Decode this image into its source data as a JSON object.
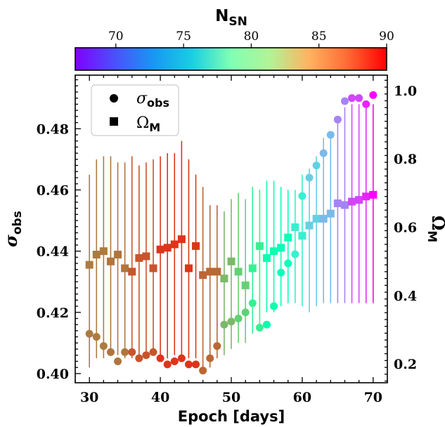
{
  "chart_data": {
    "type": "scatter",
    "xlabel": "Epoch [days]",
    "ylabel_left": {
      "base": "σ",
      "sub": "obs"
    },
    "ylabel_right": {
      "base": "Ω",
      "sub": "M"
    },
    "colorbar_label": {
      "base": "N",
      "sub": "SN"
    },
    "xlim": [
      28,
      72
    ],
    "ylim_left": [
      0.397,
      0.4975
    ],
    "ylim_right": [
      0.145,
      1.045
    ],
    "xticks": [
      "30",
      "40",
      "50",
      "60",
      "70"
    ],
    "yticks_left": [
      "0.40",
      "0.42",
      "0.44",
      "0.46",
      "0.48"
    ],
    "yticks_right": [
      "0.2",
      "0.4",
      "0.6",
      "0.8",
      "1.0"
    ],
    "colorbar_range": [
      67,
      90
    ],
    "colorbar_ticks": [
      "70",
      "75",
      "80",
      "85",
      "90"
    ],
    "colormap": "rainbow",
    "legend_position": "upper-left",
    "legend": [
      {
        "marker": "circle",
        "base": "σ",
        "sub": "obs"
      },
      {
        "marker": "square",
        "base": "Ω",
        "sub": "M"
      }
    ],
    "x": [
      30,
      31,
      32,
      33,
      34,
      35,
      36,
      37,
      38,
      39,
      40,
      41,
      42,
      43,
      44,
      45,
      46,
      47,
      48,
      49,
      50,
      51,
      52,
      53,
      54,
      55,
      56,
      57,
      58,
      59,
      60,
      61,
      62,
      63,
      64,
      65,
      66,
      67,
      68,
      69,
      70
    ],
    "n_sn": [
      86.3,
      86.3,
      86.3,
      86.5,
      86.5,
      86.5,
      87.5,
      87.5,
      87.5,
      87.5,
      88.5,
      88.5,
      88.5,
      88.5,
      88.5,
      88.5,
      87.0,
      87.0,
      87.0,
      84.0,
      84.0,
      83.0,
      83.0,
      81.0,
      81.0,
      79.0,
      79.0,
      78.0,
      78.0,
      76.0,
      76.0,
      74.0,
      74.0,
      73.0,
      73.0,
      71.0,
      71.0,
      69.0,
      69.0,
      68.0,
      67.0
    ],
    "series": [
      {
        "name": "σobs",
        "axis": "left",
        "marker": "circle",
        "values": [
          0.413,
          0.412,
          0.409,
          0.407,
          0.404,
          0.407,
          0.407,
          0.405,
          0.406,
          0.407,
          0.405,
          0.403,
          0.404,
          0.405,
          0.403,
          0.403,
          0.401,
          0.405,
          0.409,
          0.416,
          0.417,
          0.418,
          0.42,
          0.423,
          0.415,
          0.416,
          0.422,
          0.433,
          0.436,
          0.439,
          0.458,
          0.464,
          0.468,
          0.472,
          0.478,
          0.483,
          0.489,
          0.49,
          0.49,
          0.488,
          0.491
        ]
      },
      {
        "name": "ΩM",
        "axis": "right",
        "marker": "square",
        "values": [
          0.49,
          0.52,
          0.53,
          0.5,
          0.52,
          0.48,
          0.47,
          0.51,
          0.515,
          0.48,
          0.535,
          0.54,
          0.55,
          0.565,
          0.48,
          0.545,
          0.46,
          0.47,
          0.47,
          0.45,
          0.5,
          0.47,
          0.43,
          0.48,
          0.545,
          0.51,
          0.53,
          0.54,
          0.57,
          0.6,
          0.575,
          0.605,
          0.625,
          0.625,
          0.64,
          0.67,
          0.665,
          0.675,
          0.68,
          0.69,
          0.695
        ]
      }
    ],
    "errorbars_left": {
      "low": [
        0.402,
        0.405,
        0.405,
        0.406,
        0.406,
        0.405,
        0.405,
        0.405,
        0.406,
        0.406,
        0.405,
        0.405,
        0.406,
        0.406,
        0.405,
        0.405,
        0.402,
        0.402,
        0.405,
        0.406,
        0.408,
        0.41,
        0.41,
        0.413,
        0.415,
        0.42,
        0.42,
        0.422,
        0.423,
        0.423,
        0.422,
        0.42,
        0.422,
        0.423,
        0.423,
        0.423,
        0.423,
        0.423,
        0.423,
        0.423,
        0.423
      ],
      "high": [
        0.465,
        0.47,
        0.471,
        0.471,
        0.469,
        0.469,
        0.471,
        0.468,
        0.469,
        0.47,
        0.471,
        0.472,
        0.472,
        0.476,
        0.47,
        0.465,
        0.461,
        0.455,
        0.455,
        0.453,
        0.457,
        0.459,
        0.457,
        0.461,
        0.46,
        0.463,
        0.463,
        0.461,
        0.46,
        0.46,
        0.465,
        0.467,
        0.471,
        0.477,
        0.479,
        0.483,
        0.487,
        0.488,
        0.488,
        0.487,
        0.488
      ]
    }
  }
}
